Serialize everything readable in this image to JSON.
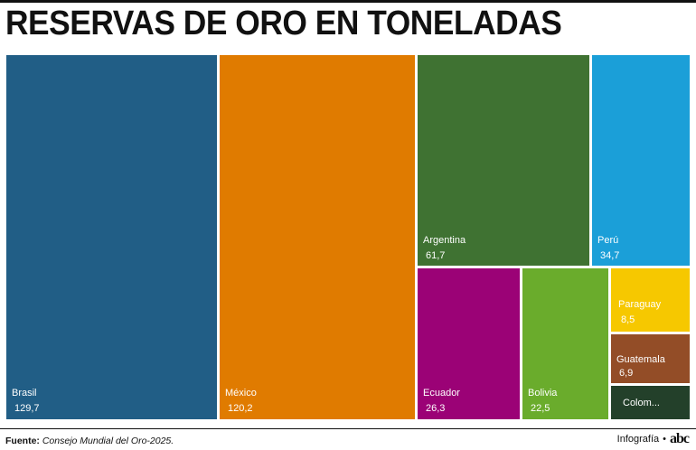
{
  "header": {
    "title": "RESERVAS DE ORO EN TONELADAS"
  },
  "footer": {
    "source_label": "Fuente:",
    "source_text": "Consejo Mundial del Oro-2025.",
    "credit": "Infografía",
    "separator": "•",
    "logo": "abc"
  },
  "chart_data": {
    "type": "treemap",
    "title": "RESERVAS DE ORO EN TONELADAS",
    "unit": "toneladas",
    "items": [
      {
        "name": "Brasil",
        "value": 129.7,
        "value_label": "129,7",
        "color": "#215e86"
      },
      {
        "name": "México",
        "value": 120.2,
        "value_label": "120,2",
        "color": "#e07b00"
      },
      {
        "name": "Argentina",
        "value": 61.7,
        "value_label": "61,7",
        "color": "#3f7232"
      },
      {
        "name": "Perú",
        "value": 34.7,
        "value_label": "34,7",
        "color": "#1b9fd8"
      },
      {
        "name": "Ecuador",
        "value": 26.3,
        "value_label": "26,3",
        "color": "#9b0276"
      },
      {
        "name": "Bolivia",
        "value": 22.5,
        "value_label": "22,5",
        "color": "#6aac2c"
      },
      {
        "name": "Paraguay",
        "value": 8.5,
        "value_label": "8,5",
        "color": "#f6c800"
      },
      {
        "name": "Guatemala",
        "value": 6.9,
        "value_label": "6,9",
        "color": "#934d27"
      },
      {
        "name": "Colom...",
        "value": null,
        "value_label": "",
        "color": "#23402a"
      }
    ]
  }
}
